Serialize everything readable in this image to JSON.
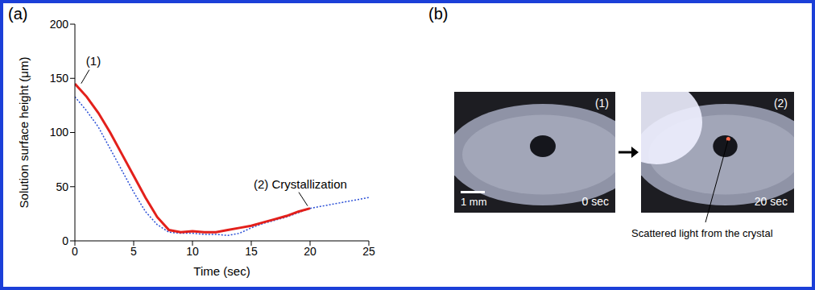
{
  "chart_data": {
    "type": "line",
    "x_label": "Time (sec)",
    "y_label": "Solution surface height (μm)",
    "x": [
      0,
      1,
      2,
      3,
      4,
      5,
      6,
      7,
      8,
      9,
      10,
      11,
      12,
      13,
      14,
      15,
      16,
      17,
      18,
      19,
      20,
      21,
      22,
      23,
      24,
      25
    ],
    "series": [
      {
        "color": "#2a4fd6",
        "line_style": "dotted",
        "values": [
          133,
          120,
          105,
          85,
          65,
          45,
          27,
          15,
          8,
          7,
          7,
          6,
          6,
          5,
          7,
          12,
          16,
          19,
          22,
          26,
          30,
          32,
          34,
          36,
          38,
          40
        ]
      },
      {
        "color": "#e3201b",
        "line_style": "solid",
        "values": [
          145,
          133,
          118,
          100,
          80,
          60,
          40,
          22,
          10,
          8,
          9,
          8,
          8,
          10,
          12,
          14,
          17,
          20,
          23,
          27,
          30,
          null,
          null,
          null,
          null,
          null
        ]
      }
    ],
    "xlim": [
      0,
      25
    ],
    "xticks": [
      0,
      5,
      10,
      15,
      20,
      25
    ],
    "ylim": [
      0,
      200
    ],
    "yticks": [
      0,
      50,
      100,
      150,
      200
    ],
    "grid": false,
    "annotations": [
      {
        "text": "(1)",
        "x": 0.4,
        "y": 143
      },
      {
        "text": "(2) Crystallization",
        "x": 20,
        "y": 30
      }
    ]
  },
  "panel_labels": [
    "(a)",
    "(b)"
  ],
  "images": [
    {
      "label": "(1)",
      "time": "0 sec",
      "scale_bar": "1 mm"
    },
    {
      "label": "(2)",
      "time": "20 sec",
      "callout": "Scattered light from the crystal"
    }
  ]
}
